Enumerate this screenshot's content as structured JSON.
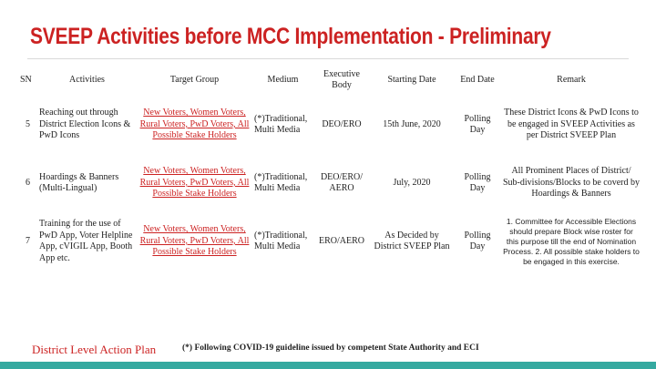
{
  "title": "SVEEP Activities before MCC Implementation - Preliminary",
  "table": {
    "headers": {
      "sn": "SN",
      "activities": "Activities",
      "target_group": "Target Group",
      "medium": "Medium",
      "executive_body": "Executive Body",
      "starting_date": "Starting Date",
      "end_date": "End Date",
      "remark": "Remark"
    },
    "rows": [
      {
        "sn": "5",
        "activities": "Reaching out through District Election Icons & PwD Icons",
        "target_group": "New Voters, Women Voters, Rural Voters, PwD Voters, All Possible Stake Holders",
        "medium": "(*)Traditional, Multi Media",
        "executive_body": "DEO/ERO",
        "starting_date": "15th June, 2020",
        "end_date": "Polling Day",
        "remark": "These District Icons & PwD Icons to be engaged in SVEEP Activities as per District SVEEP Plan"
      },
      {
        "sn": "6",
        "activities": "Hoardings & Banners (Multi-Lingual)",
        "target_group": "New Voters, Women Voters, Rural Voters, PwD Voters, All Possible Stake Holders",
        "medium": "(*)Traditional, Multi Media",
        "executive_body": "DEO/ERO/ AERO",
        "starting_date": "July, 2020",
        "end_date": "Polling Day",
        "remark": "All Prominent Places of District/ Sub-divisions/Blocks to be coverd by Hoardings & Banners"
      },
      {
        "sn": "7",
        "activities": "Training for the use of PwD App, Voter Helpline App, cVIGIL App, Booth App etc.",
        "target_group": "New Voters, Women Voters, Rural Voters, PwD Voters, All Possible Stake Holders",
        "medium": "(*)Traditional, Multi Media",
        "executive_body": "ERO/AERO",
        "starting_date": "As Decided by District SVEEP Plan",
        "end_date": "Polling Day",
        "remark": "1. Committee for Accessible Elections should prepare Block wise roster for this purpose till the end of Nomination Process. 2. All possible stake holders to be engaged in this exercise."
      }
    ]
  },
  "footer": {
    "plan_label": "District Level Action Plan",
    "note": "(*) Following COVID-19 guideline issued by competent State Authority and ECI"
  },
  "colors": {
    "title": "#cc2222",
    "bottom_bar": "#35a9a0"
  }
}
